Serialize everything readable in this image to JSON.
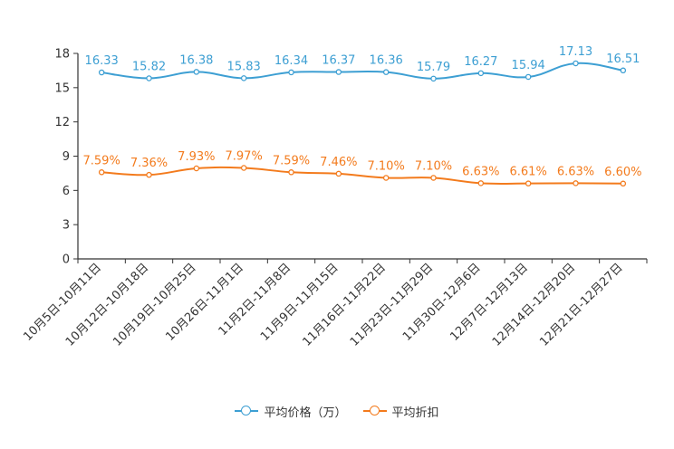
{
  "chart_data": {
    "type": "line",
    "categories": [
      "10月5日-10月11日",
      "10月12日-10月18日",
      "10月19日-10月25日",
      "10月26日-11月1日",
      "11月2日-11月8日",
      "11月9日-11月15日",
      "11月16日-11月22日",
      "11月23日-11月29日",
      "11月30日-12月6日",
      "12月7日-12月13日",
      "12月14日-12月20日",
      "12月21日-12月27日"
    ],
    "series": [
      {
        "name": "平均价格（万）",
        "color": "#3d9fd3",
        "values": [
          16.33,
          15.82,
          16.38,
          15.83,
          16.34,
          16.37,
          16.36,
          15.79,
          16.27,
          15.94,
          17.13,
          16.51
        ],
        "labels": [
          "16.33",
          "15.82",
          "16.38",
          "15.83",
          "16.34",
          "16.37",
          "16.36",
          "15.79",
          "16.27",
          "15.94",
          "17.13",
          "16.51"
        ]
      },
      {
        "name": "平均折扣",
        "color": "#f37b1d",
        "values": [
          7.59,
          7.36,
          7.93,
          7.97,
          7.59,
          7.46,
          7.1,
          7.1,
          6.63,
          6.61,
          6.63,
          6.6
        ],
        "labels": [
          "7.59%",
          "7.36%",
          "7.93%",
          "7.97%",
          "7.59%",
          "7.46%",
          "7.10%",
          "7.10%",
          "6.63%",
          "6.61%",
          "6.63%",
          "6.60%"
        ]
      }
    ],
    "yticks": [
      "0",
      "3",
      "6",
      "9",
      "12",
      "15",
      "18"
    ],
    "ylim": [
      0,
      18
    ],
    "title": "",
    "xlabel": "",
    "ylabel": "",
    "legend_position": "bottom-center"
  }
}
